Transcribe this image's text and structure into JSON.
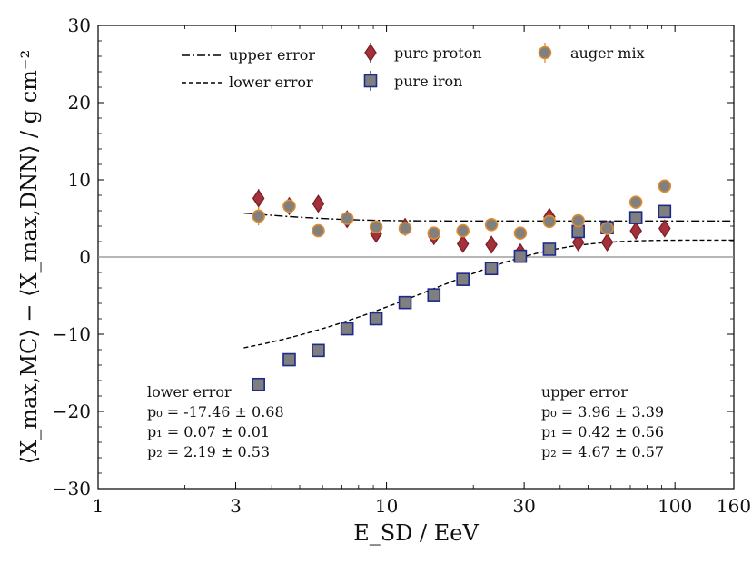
{
  "chart_data": {
    "type": "scatter",
    "xscale": "log",
    "xlim": [
      1,
      160
    ],
    "ylim": [
      -30,
      30
    ],
    "xticks": [
      1,
      3,
      10,
      30,
      100,
      160
    ],
    "xtick_labels": [
      "1",
      "3",
      "10",
      "30",
      "100",
      "160"
    ],
    "yticks": [
      -30,
      -20,
      -10,
      0,
      10,
      20,
      30
    ],
    "ytick_labels": [
      "−30",
      "−20",
      "−10",
      "0",
      "10",
      "20",
      "30"
    ],
    "xlabel": "E_SD / EeV",
    "ylabel": "⟨X_max,MC⟩ − ⟨X_max,DNN⟩ / g cm⁻²",
    "reference_line_y": 0,
    "legend_position": "top",
    "series": [
      {
        "name": "pure proton",
        "marker": "diamond",
        "fill": "#a3303a",
        "edge": "#7a1f27",
        "points": [
          {
            "x": 3.6,
            "y": 7.6,
            "err": 1.2
          },
          {
            "x": 4.6,
            "y": 6.6,
            "err": 1.0
          },
          {
            "x": 5.8,
            "y": 6.9,
            "err": 0.9
          },
          {
            "x": 7.3,
            "y": 4.9,
            "err": 0.9
          },
          {
            "x": 9.2,
            "y": 3.0,
            "err": 0.8
          },
          {
            "x": 11.6,
            "y": 3.9,
            "err": 0.8
          },
          {
            "x": 14.6,
            "y": 2.7,
            "err": 0.8
          },
          {
            "x": 18.4,
            "y": 1.7,
            "err": 0.8
          },
          {
            "x": 23.1,
            "y": 1.6,
            "err": 0.8
          },
          {
            "x": 29.1,
            "y": 0.6,
            "err": 0.8
          },
          {
            "x": 36.7,
            "y": 5.2,
            "err": 0.8
          },
          {
            "x": 46.2,
            "y": 1.9,
            "err": 0.8
          },
          {
            "x": 58.2,
            "y": 1.9,
            "err": 0.8
          },
          {
            "x": 73.2,
            "y": 3.4,
            "err": 0.8
          },
          {
            "x": 92.1,
            "y": 3.7,
            "err": 0.8
          }
        ]
      },
      {
        "name": "pure iron",
        "marker": "square",
        "fill": "#7f7f7f",
        "edge": "#1f2a8a",
        "points": [
          {
            "x": 3.6,
            "y": -16.5,
            "err": 0.5
          },
          {
            "x": 4.6,
            "y": -13.3,
            "err": 0.5
          },
          {
            "x": 5.8,
            "y": -12.1,
            "err": 0.5
          },
          {
            "x": 7.3,
            "y": -9.3,
            "err": 0.5
          },
          {
            "x": 9.2,
            "y": -8.0,
            "err": 0.5
          },
          {
            "x": 11.6,
            "y": -5.9,
            "err": 0.5
          },
          {
            "x": 14.6,
            "y": -4.9,
            "err": 0.5
          },
          {
            "x": 18.4,
            "y": -2.9,
            "err": 0.5
          },
          {
            "x": 23.1,
            "y": -1.5,
            "err": 0.5
          },
          {
            "x": 29.1,
            "y": 0.1,
            "err": 0.5
          },
          {
            "x": 36.7,
            "y": 1.0,
            "err": 0.5
          },
          {
            "x": 46.2,
            "y": 3.3,
            "err": 0.5
          },
          {
            "x": 58.2,
            "y": 3.8,
            "err": 0.5
          },
          {
            "x": 73.2,
            "y": 5.1,
            "err": 0.5
          },
          {
            "x": 92.1,
            "y": 5.9,
            "err": 0.5
          }
        ]
      },
      {
        "name": "auger mix",
        "marker": "circle",
        "fill": "#808080",
        "edge": "#e08c2c",
        "points": [
          {
            "x": 3.6,
            "y": 5.3,
            "err": 1.2
          },
          {
            "x": 4.6,
            "y": 6.6,
            "err": 0.9
          },
          {
            "x": 5.8,
            "y": 3.4,
            "err": 0.8
          },
          {
            "x": 7.3,
            "y": 5.0,
            "err": 0.7
          },
          {
            "x": 9.2,
            "y": 3.9,
            "err": 0.6
          },
          {
            "x": 11.6,
            "y": 3.7,
            "err": 0.6
          },
          {
            "x": 14.6,
            "y": 3.1,
            "err": 0.6
          },
          {
            "x": 18.4,
            "y": 3.4,
            "err": 0.6
          },
          {
            "x": 23.1,
            "y": 4.2,
            "err": 0.6
          },
          {
            "x": 29.1,
            "y": 3.1,
            "err": 0.6
          },
          {
            "x": 36.7,
            "y": 4.6,
            "err": 0.6
          },
          {
            "x": 46.2,
            "y": 4.7,
            "err": 0.6
          },
          {
            "x": 58.2,
            "y": 3.7,
            "err": 0.6
          },
          {
            "x": 73.2,
            "y": 7.1,
            "err": 0.7
          },
          {
            "x": 92.1,
            "y": 9.2,
            "err": 0.7
          }
        ]
      }
    ],
    "fits": [
      {
        "name": "upper error",
        "style": "dashdot",
        "p0": 3.96,
        "p1": 0.42,
        "p2": 4.67,
        "x_range": [
          3.2,
          160
        ]
      },
      {
        "name": "lower error",
        "style": "dashed",
        "p0": -17.46,
        "p1": 0.07,
        "p2": 2.19,
        "x_range": [
          3.2,
          160
        ]
      }
    ]
  },
  "annotations": {
    "lower": {
      "title": "lower error",
      "p0": "p₀ = -17.46 ± 0.68",
      "p1": "p₁ = 0.07 ± 0.01",
      "p2": "p₂ = 2.19 ± 0.53"
    },
    "upper": {
      "title": "upper error",
      "p0": "p₀ = 3.96 ± 3.39",
      "p1": "p₁ = 0.42 ± 0.56",
      "p2": "p₂ = 4.67 ± 0.57"
    }
  }
}
